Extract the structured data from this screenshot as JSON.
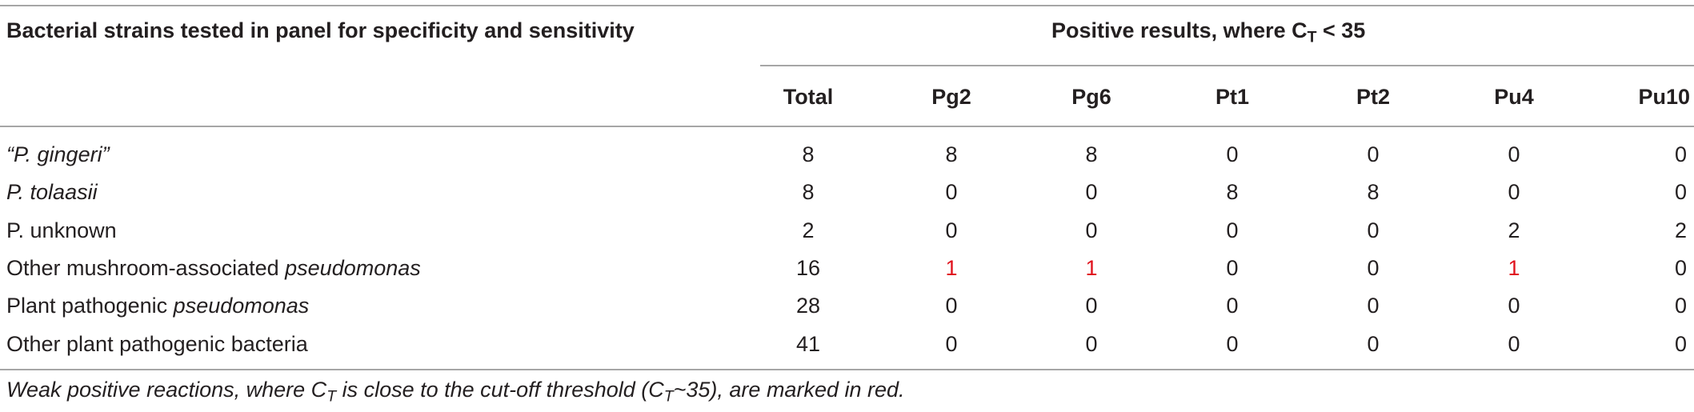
{
  "table": {
    "header_left": "Bacterial strains tested in panel for specificity and sensitivity",
    "header_right_pre": "Positive results, where C",
    "header_right_sub": "T",
    "header_right_post": " < 35",
    "columns": [
      "Total",
      "Pg2",
      "Pg6",
      "Pt1",
      "Pt2",
      "Pu4",
      "Pu10"
    ],
    "rows": [
      {
        "label_plain": "",
        "label_italic": "“P. gingeri”",
        "values": [
          "8",
          "8",
          "8",
          "0",
          "0",
          "0",
          "0"
        ],
        "weak": []
      },
      {
        "label_plain": "",
        "label_italic": "P. tolaasii",
        "values": [
          "8",
          "0",
          "0",
          "8",
          "8",
          "0",
          "0"
        ],
        "weak": []
      },
      {
        "label_plain": "P. unknown",
        "label_italic": "",
        "values": [
          "2",
          "0",
          "0",
          "0",
          "0",
          "2",
          "2"
        ],
        "weak": []
      },
      {
        "label_plain": "Other mushroom-associated ",
        "label_italic": "pseudomonas",
        "values": [
          "16",
          "1",
          "1",
          "0",
          "0",
          "1",
          "0"
        ],
        "weak": [
          1,
          2,
          5
        ]
      },
      {
        "label_plain": "Plant pathogenic ",
        "label_italic": "pseudomonas",
        "values": [
          "28",
          "0",
          "0",
          "0",
          "0",
          "0",
          "0"
        ],
        "weak": []
      },
      {
        "label_plain": "Other plant pathogenic bacteria",
        "label_italic": "",
        "values": [
          "41",
          "0",
          "0",
          "0",
          "0",
          "0",
          "0"
        ],
        "weak": []
      }
    ],
    "footnote": {
      "part1": "Weak positive reactions, where C",
      "sub1": "T",
      "part2": " is close to the cut-off threshold (C",
      "sub2": "T",
      "part3": "~35), are marked in red."
    },
    "colors": {
      "weak_positive": "#e0131e",
      "rule": "#a6a6a6",
      "text": "#231f20"
    }
  }
}
